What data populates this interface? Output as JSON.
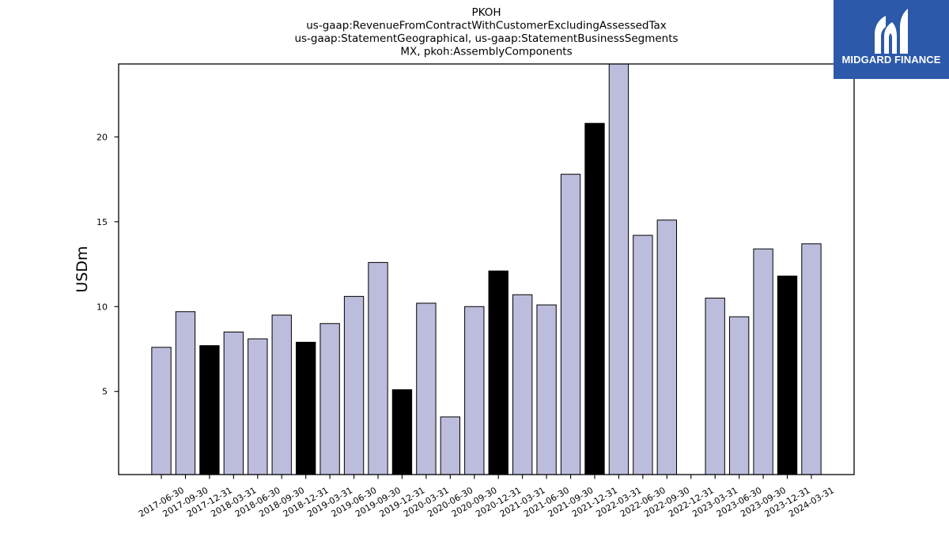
{
  "logo": {
    "text": "MIDGARD FINANCE",
    "icon": "midgard-finance-logo-icon",
    "background": "#2c59a9",
    "foreground": "#ffffff"
  },
  "chart_data": {
    "type": "bar",
    "title": [
      "PKOH",
      "us-gaap:RevenueFromContractWithCustomerExcludingAssessedTax",
      "us-gaap:StatementGeographical, us-gaap:StatementBusinessSegments",
      "MX, pkoh:AssemblyComponents"
    ],
    "ylabel": "USDm",
    "categories": [
      "2017-06-30",
      "2017-09-30",
      "2017-12-31",
      "2018-03-31",
      "2018-06-30",
      "2018-09-30",
      "2018-12-31",
      "2019-03-31",
      "2019-06-30",
      "2019-09-30",
      "2019-12-31",
      "2020-03-31",
      "2020-06-30",
      "2020-09-30",
      "2020-12-31",
      "2021-03-31",
      "2021-06-30",
      "2021-09-30",
      "2021-12-31",
      "2022-03-31",
      "2022-06-30",
      "2022-09-30",
      "2022-12-31",
      "2023-03-31",
      "2023-06-30",
      "2023-09-30",
      "2023-12-31",
      "2024-03-31"
    ],
    "values": [
      7.6,
      9.7,
      7.7,
      8.5,
      8.1,
      9.5,
      7.9,
      9.0,
      10.6,
      12.6,
      5.1,
      10.2,
      3.5,
      10.0,
      12.1,
      10.7,
      10.1,
      17.8,
      20.8,
      24.3,
      14.2,
      15.1,
      null,
      10.5,
      9.4,
      13.4,
      11.8,
      13.7
    ],
    "colors": [
      "#bcbddc",
      "#bcbddc",
      "#000000",
      "#bcbddc",
      "#bcbddc",
      "#bcbddc",
      "#000000",
      "#bcbddc",
      "#bcbddc",
      "#bcbddc",
      "#000000",
      "#bcbddc",
      "#bcbddc",
      "#bcbddc",
      "#000000",
      "#bcbddc",
      "#bcbddc",
      "#bcbddc",
      "#000000",
      "#bcbddc",
      "#bcbddc",
      "#bcbddc",
      "#000000",
      "#bcbddc",
      "#bcbddc",
      "#bcbddc",
      "#000000",
      "#bcbddc"
    ],
    "ylim": [
      0.1,
      24.3
    ],
    "yticks": [
      5,
      10,
      15,
      20
    ],
    "grid": false
  }
}
